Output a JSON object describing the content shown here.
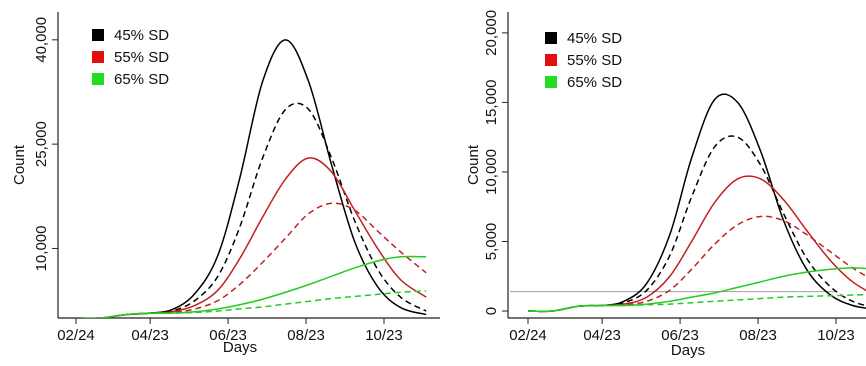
{
  "chart_data": [
    {
      "type": "line",
      "title": "",
      "xlabel": "Days",
      "ylabel": "Count",
      "x_ticks": [
        "02/24",
        "04/23",
        "06/23",
        "08/23",
        "10/23"
      ],
      "y_ticks": [
        10000,
        25000,
        40000
      ],
      "y_tick_labels": [
        "10,000",
        "25,000",
        "40,000"
      ],
      "ylim": [
        0,
        44000
      ],
      "grid": false,
      "legend_position": "top-left",
      "legend": [
        {
          "label": "45% SD",
          "color": "#000000"
        },
        {
          "label": "55% SD",
          "color": "#e01010"
        },
        {
          "label": "65% SD",
          "color": "#22dd22"
        }
      ],
      "series": [
        {
          "group": "45% SD",
          "style": "solid",
          "color": "#000000",
          "x": [
            "02/24",
            "03/15",
            "04/05",
            "04/23",
            "05/10",
            "05/28",
            "06/15",
            "07/02",
            "07/20",
            "08/07",
            "08/25",
            "09/12",
            "09/30",
            "10/18",
            "11/05",
            "11/25"
          ],
          "y": [
            0,
            0,
            500,
            700,
            1200,
            3500,
            9000,
            20000,
            34000,
            40000,
            34000,
            22000,
            11000,
            4500,
            1500,
            500
          ]
        },
        {
          "group": "45% SD",
          "style": "dashed",
          "color": "#000000",
          "x": [
            "02/24",
            "03/15",
            "04/05",
            "04/23",
            "05/10",
            "05/28",
            "06/15",
            "07/02",
            "07/20",
            "08/07",
            "08/25",
            "09/12",
            "09/30",
            "10/18",
            "11/05",
            "11/25"
          ],
          "y": [
            0,
            0,
            500,
            700,
            1000,
            2500,
            6000,
            13000,
            23000,
            30000,
            30000,
            23000,
            14000,
            7000,
            3000,
            1000
          ]
        },
        {
          "group": "55% SD",
          "style": "solid",
          "color": "#c02020",
          "x": [
            "02/24",
            "03/15",
            "04/05",
            "04/23",
            "05/10",
            "05/28",
            "06/15",
            "07/02",
            "07/20",
            "08/07",
            "08/25",
            "09/12",
            "09/30",
            "10/18",
            "11/05",
            "11/25"
          ],
          "y": [
            0,
            0,
            500,
            700,
            900,
            1800,
            4000,
            8500,
            14500,
            20000,
            23000,
            21000,
            15500,
            10000,
            5500,
            3000
          ]
        },
        {
          "group": "55% SD",
          "style": "dashed",
          "color": "#c02020",
          "x": [
            "02/24",
            "03/15",
            "04/05",
            "04/23",
            "05/10",
            "05/28",
            "06/15",
            "07/02",
            "07/20",
            "08/07",
            "08/25",
            "09/12",
            "09/30",
            "10/18",
            "11/05",
            "11/25"
          ],
          "y": [
            0,
            0,
            500,
            700,
            800,
            1300,
            2500,
            4800,
            8000,
            11500,
            15000,
            16500,
            15500,
            12500,
            9500,
            6500
          ]
        },
        {
          "group": "65% SD",
          "style": "solid",
          "color": "#22cc22",
          "x": [
            "02/24",
            "03/15",
            "04/05",
            "04/23",
            "05/10",
            "05/28",
            "06/15",
            "07/02",
            "07/20",
            "08/07",
            "08/25",
            "09/12",
            "09/30",
            "10/18",
            "11/05",
            "11/25"
          ],
          "y": [
            0,
            0,
            500,
            700,
            700,
            900,
            1300,
            1900,
            2700,
            3700,
            4800,
            6000,
            7200,
            8200,
            8800,
            8800
          ]
        },
        {
          "group": "65% SD",
          "style": "dashed",
          "color": "#22cc22",
          "x": [
            "02/24",
            "03/15",
            "04/05",
            "04/23",
            "05/10",
            "05/28",
            "06/15",
            "07/02",
            "07/20",
            "08/07",
            "08/25",
            "09/12",
            "09/30",
            "10/18",
            "11/05",
            "11/25"
          ],
          "y": [
            0,
            0,
            500,
            700,
            700,
            800,
            1000,
            1300,
            1600,
            2000,
            2400,
            2800,
            3100,
            3400,
            3700,
            3900
          ]
        }
      ]
    },
    {
      "type": "line",
      "title": "",
      "xlabel": "Days",
      "ylabel": "Count",
      "x_ticks": [
        "02/24",
        "04/23",
        "06/23",
        "08/23",
        "10/23"
      ],
      "y_ticks": [
        0,
        5000,
        10000,
        15000,
        20000
      ],
      "y_tick_labels": [
        "0",
        "5,000",
        "10,000",
        "15,000",
        "20,000"
      ],
      "ylim": [
        -500,
        21500
      ],
      "grid": false,
      "legend_position": "top-left",
      "legend": [
        {
          "label": "45% SD",
          "color": "#000000"
        },
        {
          "label": "55% SD",
          "color": "#e01010"
        },
        {
          "label": "65% SD",
          "color": "#22dd22"
        }
      ],
      "reference_line": {
        "y": 1400,
        "x_from": "02/24",
        "x_to": "10/23",
        "color": "#aaaaaa"
      },
      "series": [
        {
          "group": "45% SD",
          "style": "solid",
          "color": "#000000",
          "x": [
            "02/24",
            "03/15",
            "04/05",
            "04/23",
            "05/10",
            "05/28",
            "06/15",
            "07/02",
            "07/20",
            "08/07",
            "08/25",
            "09/12",
            "09/30",
            "10/18",
            "11/05",
            "11/25"
          ],
          "y": [
            0,
            0,
            350,
            400,
            700,
            2000,
            5500,
            11000,
            15200,
            15000,
            11500,
            6500,
            3000,
            1200,
            400,
            100
          ]
        },
        {
          "group": "45% SD",
          "style": "dashed",
          "color": "#000000",
          "x": [
            "02/24",
            "03/15",
            "04/05",
            "04/23",
            "05/10",
            "05/28",
            "06/15",
            "07/02",
            "07/20",
            "08/07",
            "08/25",
            "09/12",
            "09/30",
            "10/18",
            "11/05",
            "11/25"
          ],
          "y": [
            0,
            0,
            350,
            400,
            600,
            1500,
            4000,
            8200,
            11800,
            12500,
            10500,
            7000,
            3800,
            1800,
            700,
            200
          ]
        },
        {
          "group": "55% SD",
          "style": "solid",
          "color": "#c02020",
          "x": [
            "02/24",
            "03/15",
            "04/05",
            "04/23",
            "05/10",
            "05/28",
            "06/15",
            "07/02",
            "07/20",
            "08/07",
            "08/25",
            "09/12",
            "09/30",
            "10/18",
            "11/05",
            "11/25"
          ],
          "y": [
            0,
            0,
            350,
            400,
            500,
            1000,
            2500,
            5000,
            7800,
            9500,
            9500,
            8000,
            5800,
            3700,
            2100,
            1000
          ]
        },
        {
          "group": "55% SD",
          "style": "dashed",
          "color": "#c02020",
          "x": [
            "02/24",
            "03/15",
            "04/05",
            "04/23",
            "05/10",
            "05/28",
            "06/15",
            "07/02",
            "07/20",
            "08/07",
            "08/25",
            "09/12",
            "09/30",
            "10/18",
            "11/05",
            "11/25"
          ],
          "y": [
            0,
            0,
            350,
            400,
            450,
            700,
            1500,
            3000,
            4800,
            6200,
            6800,
            6500,
            5500,
            4300,
            3100,
            2000
          ]
        },
        {
          "group": "65% SD",
          "style": "solid",
          "color": "#22cc22",
          "x": [
            "02/24",
            "03/15",
            "04/05",
            "04/23",
            "05/10",
            "05/28",
            "06/15",
            "07/02",
            "07/20",
            "08/07",
            "08/25",
            "09/12",
            "09/30",
            "10/18",
            "11/05",
            "11/25"
          ],
          "y": [
            0,
            0,
            350,
            400,
            400,
            500,
            700,
            1000,
            1300,
            1700,
            2100,
            2500,
            2800,
            3000,
            3100,
            3000
          ]
        },
        {
          "group": "65% SD",
          "style": "dashed",
          "color": "#22cc22",
          "x": [
            "02/24",
            "03/15",
            "04/05",
            "04/23",
            "05/10",
            "05/28",
            "06/15",
            "07/02",
            "07/20",
            "08/07",
            "08/25",
            "09/12",
            "09/30",
            "10/18",
            "11/05",
            "11/25"
          ],
          "y": [
            0,
            0,
            350,
            400,
            400,
            450,
            500,
            600,
            700,
            800,
            900,
            1000,
            1050,
            1100,
            1150,
            1200
          ]
        }
      ]
    }
  ]
}
